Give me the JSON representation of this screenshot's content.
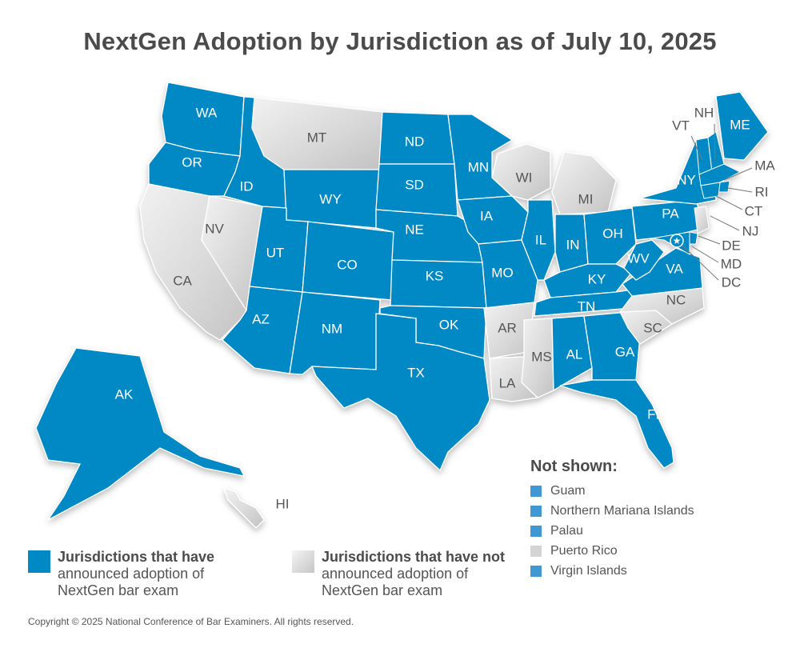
{
  "title": "NextGen Adoption by Jurisdiction as of July 10, 2025",
  "colors": {
    "adopted": "#0089c5",
    "not_adopted": "#d4d4d4",
    "border": "#ffffff",
    "text_dark": "#4b4b4b"
  },
  "states": [
    {
      "abbr": "WA",
      "status": "adopted"
    },
    {
      "abbr": "OR",
      "status": "adopted"
    },
    {
      "abbr": "CA",
      "status": "not_adopted"
    },
    {
      "abbr": "NV",
      "status": "not_adopted"
    },
    {
      "abbr": "ID",
      "status": "adopted"
    },
    {
      "abbr": "MT",
      "status": "not_adopted"
    },
    {
      "abbr": "WY",
      "status": "adopted"
    },
    {
      "abbr": "UT",
      "status": "adopted"
    },
    {
      "abbr": "AZ",
      "status": "adopted"
    },
    {
      "abbr": "CO",
      "status": "adopted"
    },
    {
      "abbr": "NM",
      "status": "adopted"
    },
    {
      "abbr": "ND",
      "status": "adopted"
    },
    {
      "abbr": "SD",
      "status": "adopted"
    },
    {
      "abbr": "NE",
      "status": "adopted"
    },
    {
      "abbr": "KS",
      "status": "adopted"
    },
    {
      "abbr": "OK",
      "status": "adopted"
    },
    {
      "abbr": "TX",
      "status": "adopted"
    },
    {
      "abbr": "MN",
      "status": "adopted"
    },
    {
      "abbr": "IA",
      "status": "adopted"
    },
    {
      "abbr": "MO",
      "status": "adopted"
    },
    {
      "abbr": "AR",
      "status": "not_adopted"
    },
    {
      "abbr": "LA",
      "status": "not_adopted"
    },
    {
      "abbr": "WI",
      "status": "not_adopted"
    },
    {
      "abbr": "IL",
      "status": "adopted"
    },
    {
      "abbr": "MI",
      "status": "not_adopted"
    },
    {
      "abbr": "IN",
      "status": "adopted"
    },
    {
      "abbr": "OH",
      "status": "adopted"
    },
    {
      "abbr": "KY",
      "status": "adopted"
    },
    {
      "abbr": "TN",
      "status": "adopted"
    },
    {
      "abbr": "MS",
      "status": "not_adopted"
    },
    {
      "abbr": "AL",
      "status": "adopted"
    },
    {
      "abbr": "GA",
      "status": "adopted"
    },
    {
      "abbr": "FL",
      "status": "adopted"
    },
    {
      "abbr": "SC",
      "status": "not_adopted"
    },
    {
      "abbr": "NC",
      "status": "not_adopted"
    },
    {
      "abbr": "VA",
      "status": "adopted"
    },
    {
      "abbr": "WV",
      "status": "adopted"
    },
    {
      "abbr": "PA",
      "status": "adopted"
    },
    {
      "abbr": "NY",
      "status": "adopted"
    },
    {
      "abbr": "ME",
      "status": "adopted"
    },
    {
      "abbr": "AK",
      "status": "adopted"
    },
    {
      "abbr": "HI",
      "status": "not_adopted"
    }
  ],
  "callouts": [
    {
      "abbr": "VT",
      "status": "adopted"
    },
    {
      "abbr": "NH",
      "status": "adopted"
    },
    {
      "abbr": "MA",
      "status": "adopted"
    },
    {
      "abbr": "RI",
      "status": "adopted"
    },
    {
      "abbr": "CT",
      "status": "adopted"
    },
    {
      "abbr": "NJ",
      "status": "not_adopted"
    },
    {
      "abbr": "DE",
      "status": "adopted"
    },
    {
      "abbr": "MD",
      "status": "adopted"
    },
    {
      "abbr": "DC",
      "status": "adopted"
    }
  ],
  "not_shown": {
    "title": "Not shown:",
    "items": [
      {
        "label": "Guam",
        "status": "adopted"
      },
      {
        "label": "Northern Mariana Islands",
        "status": "adopted"
      },
      {
        "label": "Palau",
        "status": "adopted"
      },
      {
        "label": "Puerto Rico",
        "status": "not_adopted"
      },
      {
        "label": "Virgin Islands",
        "status": "adopted"
      }
    ]
  },
  "legend": {
    "adopted": {
      "bold": "Jurisdictions that have",
      "line2": "announced adoption of",
      "line3": "NextGen bar exam"
    },
    "not_adopted": {
      "bold": "Jurisdictions that have not",
      "line2": "announced adoption of",
      "line3": "NextGen bar exam"
    }
  },
  "copyright": "Copyright © 2025 National Conference of Bar Examiners. All rights reserved."
}
